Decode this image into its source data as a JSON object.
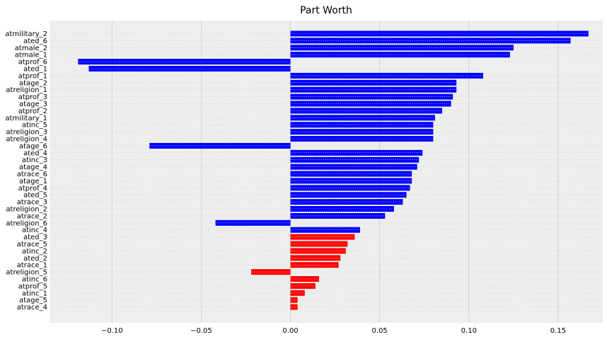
{
  "chart_data": {
    "type": "bar",
    "orientation": "horizontal",
    "title": "Part Worth",
    "xlabel": "",
    "ylabel": "",
    "xlim": [
      -0.135,
      0.175
    ],
    "xticks": [
      -0.1,
      -0.05,
      0.0,
      0.05,
      0.1,
      0.15
    ],
    "xtick_labels": [
      "−0.10",
      "−0.05",
      "0.00",
      "0.05",
      "0.10",
      "0.15"
    ],
    "grid": true,
    "colors": {
      "positive_significant": "#0000ff",
      "not_significant": "#ff0000",
      "background": "#eeeeee",
      "grid": "#cbcbcb"
    },
    "bars": [
      {
        "label": "atmilitary_2",
        "value": 0.167,
        "color": "#0000ff"
      },
      {
        "label": "ated_6",
        "value": 0.157,
        "color": "#0000ff"
      },
      {
        "label": "atmale_2",
        "value": 0.125,
        "color": "#0000ff"
      },
      {
        "label": "atmale_1",
        "value": 0.123,
        "color": "#0000ff"
      },
      {
        "label": "atprof_6",
        "value": -0.119,
        "color": "#0000ff"
      },
      {
        "label": "ated_1",
        "value": -0.113,
        "color": "#0000ff"
      },
      {
        "label": "atprof_1",
        "value": 0.108,
        "color": "#0000ff"
      },
      {
        "label": "atage_2",
        "value": 0.093,
        "color": "#0000ff"
      },
      {
        "label": "atreligion_1",
        "value": 0.093,
        "color": "#0000ff"
      },
      {
        "label": "atprof_3",
        "value": 0.091,
        "color": "#0000ff"
      },
      {
        "label": "atage_3",
        "value": 0.09,
        "color": "#0000ff"
      },
      {
        "label": "atprof_2",
        "value": 0.085,
        "color": "#0000ff"
      },
      {
        "label": "atmilitary_1",
        "value": 0.081,
        "color": "#0000ff"
      },
      {
        "label": "atinc_5",
        "value": 0.08,
        "color": "#0000ff"
      },
      {
        "label": "atreligion_3",
        "value": 0.08,
        "color": "#0000ff"
      },
      {
        "label": "atreligion_4",
        "value": 0.08,
        "color": "#0000ff"
      },
      {
        "label": "atage_6",
        "value": -0.079,
        "color": "#0000ff"
      },
      {
        "label": "ated_4",
        "value": 0.074,
        "color": "#0000ff"
      },
      {
        "label": "atinc_3",
        "value": 0.072,
        "color": "#0000ff"
      },
      {
        "label": "atage_4",
        "value": 0.071,
        "color": "#0000ff"
      },
      {
        "label": "atrace_6",
        "value": 0.068,
        "color": "#0000ff"
      },
      {
        "label": "atage_1",
        "value": 0.068,
        "color": "#0000ff"
      },
      {
        "label": "atprof_4",
        "value": 0.067,
        "color": "#0000ff"
      },
      {
        "label": "ated_5",
        "value": 0.065,
        "color": "#0000ff"
      },
      {
        "label": "atrace_3",
        "value": 0.063,
        "color": "#0000ff"
      },
      {
        "label": "atreligion_2",
        "value": 0.058,
        "color": "#0000ff"
      },
      {
        "label": "atrace_2",
        "value": 0.053,
        "color": "#0000ff"
      },
      {
        "label": "atreligion_6",
        "value": -0.042,
        "color": "#0000ff"
      },
      {
        "label": "atinc_4",
        "value": 0.039,
        "color": "#0000ff"
      },
      {
        "label": "ated_3",
        "value": 0.036,
        "color": "#ff0000"
      },
      {
        "label": "atrace_5",
        "value": 0.032,
        "color": "#ff0000"
      },
      {
        "label": "atinc_2",
        "value": 0.031,
        "color": "#ff0000"
      },
      {
        "label": "ated_2",
        "value": 0.028,
        "color": "#ff0000"
      },
      {
        "label": "atrace_1",
        "value": 0.027,
        "color": "#ff0000"
      },
      {
        "label": "atreligion_5",
        "value": -0.022,
        "color": "#ff0000"
      },
      {
        "label": "atinc_6",
        "value": 0.016,
        "color": "#ff0000"
      },
      {
        "label": "atprof_5",
        "value": 0.014,
        "color": "#ff0000"
      },
      {
        "label": "atinc_1",
        "value": 0.008,
        "color": "#ff0000"
      },
      {
        "label": "atage_5",
        "value": 0.004,
        "color": "#ff0000"
      },
      {
        "label": "atrace_4",
        "value": 0.004,
        "color": "#ff0000"
      }
    ]
  }
}
